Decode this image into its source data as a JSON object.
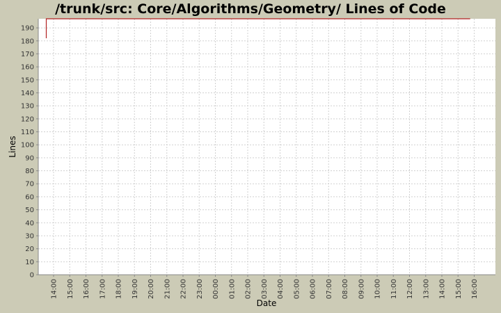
{
  "chart_data": {
    "type": "line",
    "title": "/trunk/src: Core/Algorithms/Geometry/ Lines of Code",
    "xlabel": "Date",
    "ylabel": "Lines",
    "ylim": [
      0,
      197
    ],
    "y_ticks": [
      0,
      10,
      20,
      30,
      40,
      50,
      60,
      70,
      80,
      90,
      100,
      110,
      120,
      130,
      140,
      150,
      160,
      170,
      180,
      190
    ],
    "x_ticks": [
      "14:00",
      "15:00",
      "16:00",
      "17:00",
      "18:00",
      "19:00",
      "20:00",
      "21:00",
      "22:00",
      "23:00",
      "00:00",
      "01:00",
      "02:00",
      "03:00",
      "04:00",
      "05:00",
      "06:00",
      "07:00",
      "08:00",
      "09:00",
      "10:00",
      "11:00",
      "12:00",
      "13:00",
      "14:00",
      "15:00",
      "16:00"
    ],
    "grid": true,
    "colors": {
      "background": "#cccbb6",
      "plot": "#ffffff",
      "grid": "#d0d0d0",
      "series": "#b22222"
    },
    "series": [
      {
        "x": [
          -0.45,
          -0.45,
          25.75
        ],
        "values": [
          182,
          197,
          197
        ]
      }
    ]
  }
}
